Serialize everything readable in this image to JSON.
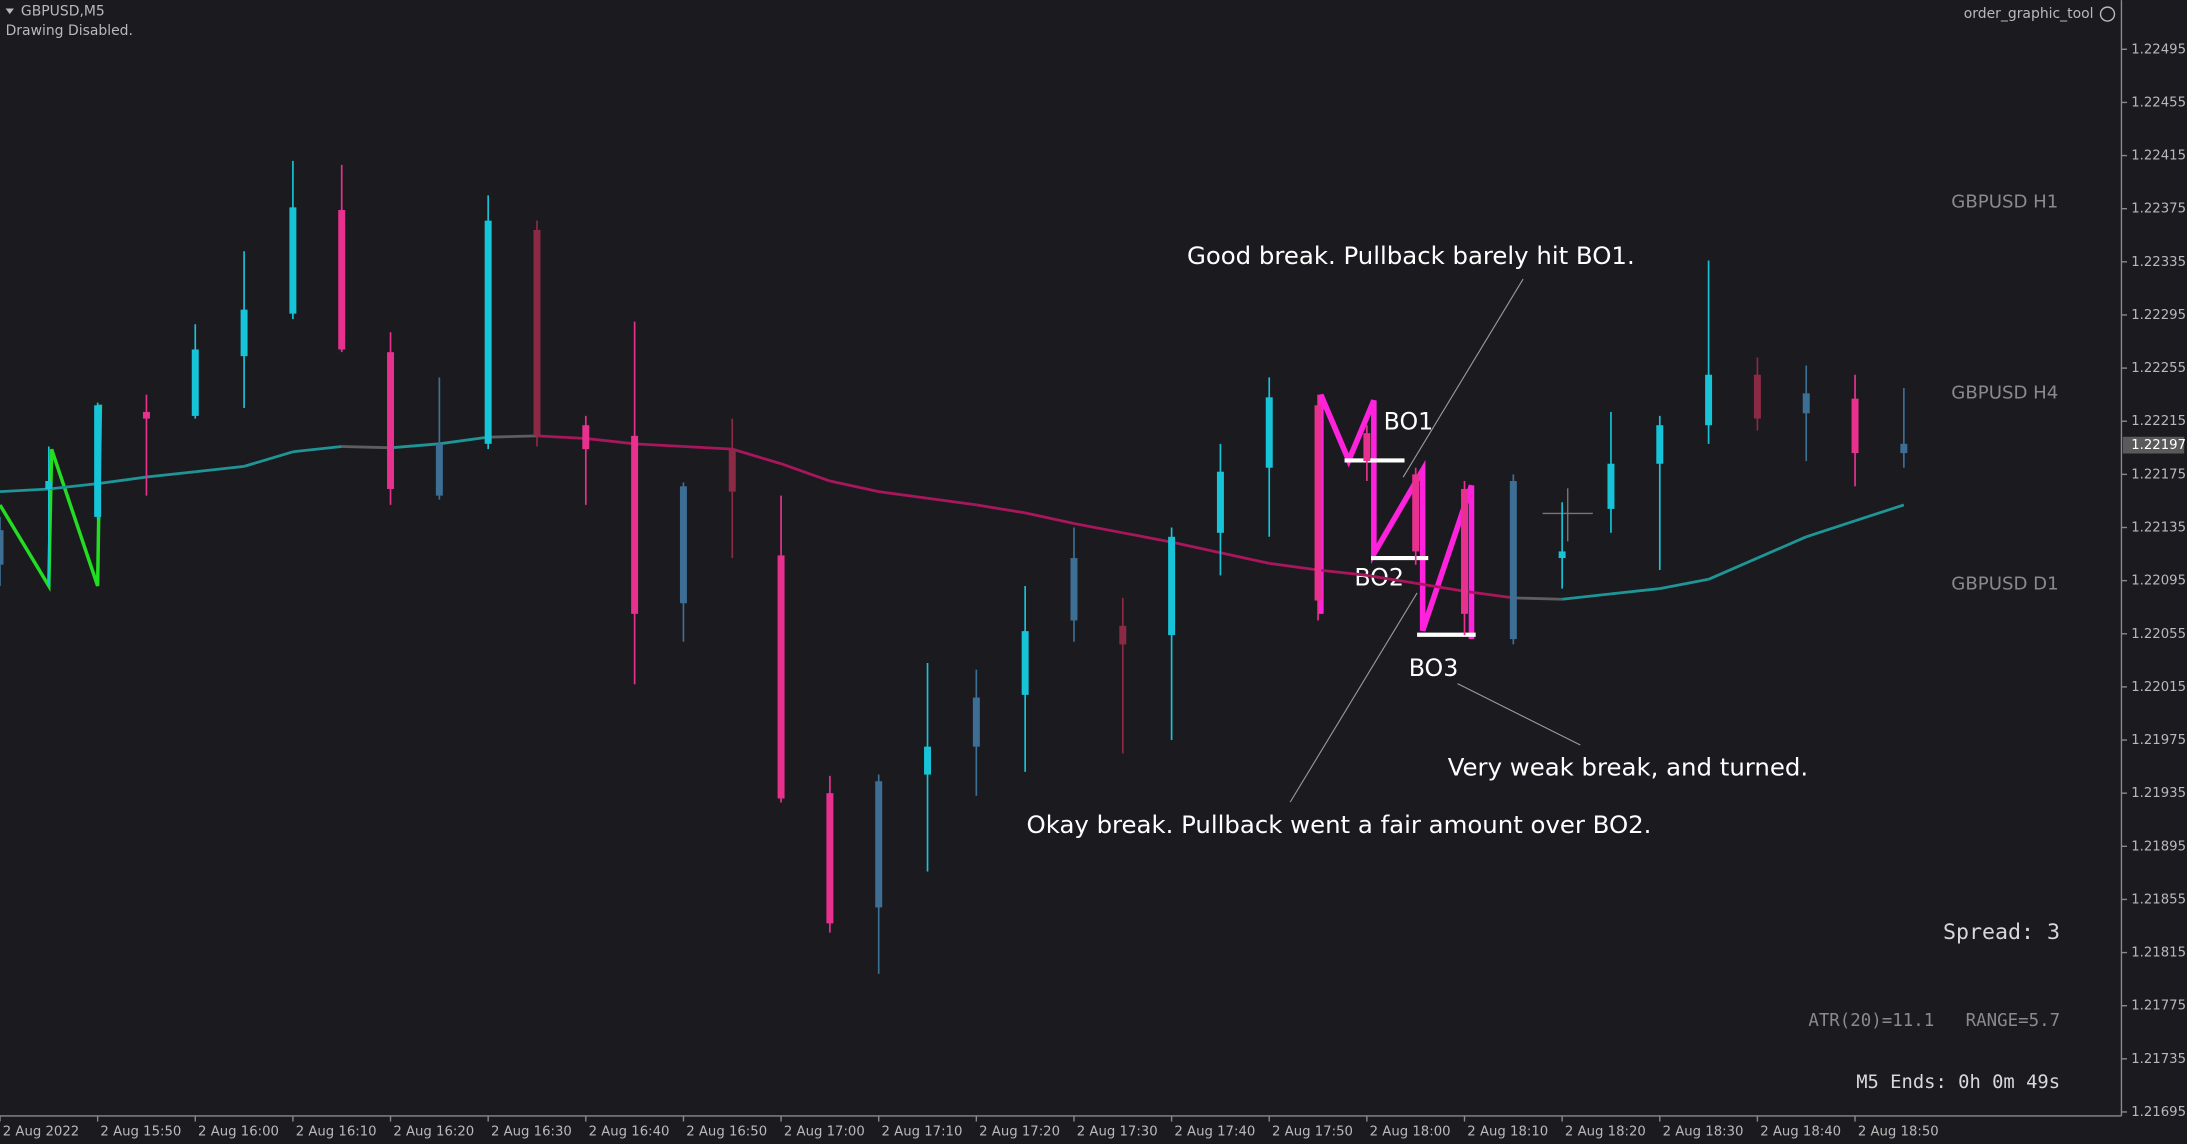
{
  "header": {
    "symbol": "GBPUSD,M5",
    "status": "Drawing Disabled.",
    "tool": "order_graphic_tool"
  },
  "chart_data": {
    "type": "candlestick",
    "categories": [
      "2 Aug 2022",
      null,
      "2 Aug 15:50",
      null,
      "2 Aug 16:00",
      null,
      "2 Aug 16:10",
      null,
      "2 Aug 16:20",
      null,
      "2 Aug 16:30",
      null,
      "2 Aug 16:40",
      null,
      "2 Aug 16:50",
      null,
      "2 Aug 17:00",
      null,
      "2 Aug 17:10",
      null,
      "2 Aug 17:20",
      null,
      "2 Aug 17:30",
      null,
      "2 Aug 17:40",
      null,
      "2 Aug 17:50",
      null,
      "2 Aug 18:00",
      null,
      "2 Aug 18:10",
      null,
      "2 Aug 18:20",
      null,
      "2 Aug 18:30",
      null,
      "2 Aug 18:40",
      null,
      "2 Aug 18:50",
      null
    ],
    "open": [
      1.22107,
      1.22164,
      1.22143,
      1.22222,
      1.22219,
      1.22264,
      1.22296,
      1.22374,
      1.22267,
      1.22159,
      1.22198,
      1.22359,
      1.22212,
      1.22204,
      1.22078,
      1.22194,
      1.22114,
      1.21935,
      1.21849,
      1.21949,
      1.2197,
      1.22009,
      1.22065,
      1.22061,
      1.22054,
      1.22131,
      1.2218,
      1.22227,
      1.22206,
      1.22175,
      1.22164,
      1.22051,
      1.22112,
      1.22149,
      1.22183,
      1.22212,
      1.2225,
      1.22236,
      1.22232,
      1.22198
    ],
    "high": [
      1.22143,
      1.22196,
      1.22229,
      1.22235,
      1.22288,
      1.22343,
      1.22411,
      1.22408,
      1.22282,
      1.22248,
      1.22385,
      1.22366,
      1.22219,
      1.2229,
      1.22169,
      1.22217,
      1.22159,
      1.21948,
      1.21949,
      1.22033,
      1.22028,
      1.22091,
      1.22135,
      1.22082,
      1.22135,
      1.22198,
      1.22248,
      1.22235,
      1.22212,
      1.2218,
      1.2217,
      1.22175,
      1.22154,
      1.22222,
      1.22219,
      1.22336,
      1.22263,
      1.22257,
      1.2225,
      1.2224
    ],
    "low": [
      1.22091,
      1.22091,
      1.22141,
      1.22159,
      1.22217,
      1.22225,
      1.22292,
      1.22267,
      1.22152,
      1.22156,
      1.22194,
      1.22196,
      1.22152,
      1.22017,
      1.22049,
      1.22112,
      1.21928,
      1.2183,
      1.21799,
      1.21876,
      1.21933,
      1.21951,
      1.22049,
      1.21965,
      1.21975,
      1.22099,
      1.22128,
      1.22065,
      1.2217,
      1.22107,
      1.22054,
      1.22047,
      1.22089,
      1.22131,
      1.22103,
      1.22198,
      1.22208,
      1.22185,
      1.22166,
      1.2218
    ],
    "close": [
      1.22133,
      1.2217,
      1.22227,
      1.22217,
      1.22269,
      1.22299,
      1.22376,
      1.22269,
      1.22164,
      1.22198,
      1.22366,
      1.22204,
      1.22194,
      1.2207,
      1.22166,
      1.22162,
      1.21931,
      1.21837,
      1.21944,
      1.2197,
      1.22007,
      1.22057,
      1.22112,
      1.22047,
      1.22128,
      1.22177,
      1.22233,
      1.2208,
      1.22185,
      1.22117,
      1.2207,
      1.2217,
      1.22117,
      1.22183,
      1.22212,
      1.2225,
      1.22217,
      1.22221,
      1.22191,
      1.22191
    ],
    "candle_colors": [
      "#3d6e94",
      "#17c3d6",
      "#17c3d6",
      "#e8318f",
      "#17c3d6",
      "#17c3d6",
      "#17c3d6",
      "#e8318f",
      "#e8318f",
      "#3d6e94",
      "#17c3d6",
      "#8b2a45",
      "#e8318f",
      "#e8318f",
      "#3d6e94",
      "#8b2a45",
      "#e8318f",
      "#e8318f",
      "#3d6e94",
      "#17c3d6",
      "#3d6e94",
      "#17c3d6",
      "#3d6e94",
      "#8b2a45",
      "#17c3d6",
      "#17c3d6",
      "#17c3d6",
      "#e8318f",
      "#e8318f",
      "#e8318f",
      "#e8318f",
      "#3d6e94",
      "#17c3d6",
      "#17c3d6",
      "#17c3d6",
      "#17c3d6",
      "#8b2a45",
      "#3d6e94",
      "#e8318f",
      "#3d6e94"
    ],
    "ma": {
      "values": [
        1.22162,
        1.22164,
        1.22168,
        1.22173,
        1.22177,
        1.22181,
        1.22192,
        1.22196,
        1.22195,
        1.22198,
        1.22203,
        1.22204,
        1.22202,
        1.22198,
        1.22196,
        1.22194,
        1.22183,
        1.2217,
        1.22162,
        1.22157,
        1.22152,
        1.22146,
        1.22138,
        1.22131,
        1.22124,
        1.22116,
        1.22108,
        1.22103,
        1.22099,
        1.22093,
        1.22087,
        1.22082,
        1.22081,
        1.22085,
        1.22089,
        1.22096,
        1.22112,
        1.22128,
        1.2214,
        1.22152
      ],
      "colors": {
        "up": "#1e9596",
        "down": "#a8165b",
        "flat": "#5e5e5e"
      }
    },
    "ylim": [
      1.21692,
      1.22532
    ],
    "yticks": [
      1.22495,
      1.22455,
      1.22415,
      1.22375,
      1.22335,
      1.22295,
      1.22255,
      1.22215,
      1.22175,
      1.22135,
      1.22095,
      1.22055,
      1.22015,
      1.21975,
      1.21935,
      1.21895,
      1.21855,
      1.21815,
      1.21775,
      1.21735,
      1.21695
    ],
    "current_price": 1.22197,
    "annotations": [
      "Good break. Pullback barely hit BO1.",
      "Okay break. Pullback went a fair amount over BO2.",
      "Very weak break, and turned."
    ],
    "breakout_labels": [
      "BO1",
      "BO2",
      "BO3"
    ],
    "panel_labels": [
      "GBPUSD H1",
      "GBPUSD H4",
      "GBPUSD D1"
    ],
    "info": {
      "spread": "Spread: 3",
      "atr": "ATR(20)=11.1   RANGE=5.7",
      "timer": "M5 Ends: 0h 0m 49s"
    }
  }
}
